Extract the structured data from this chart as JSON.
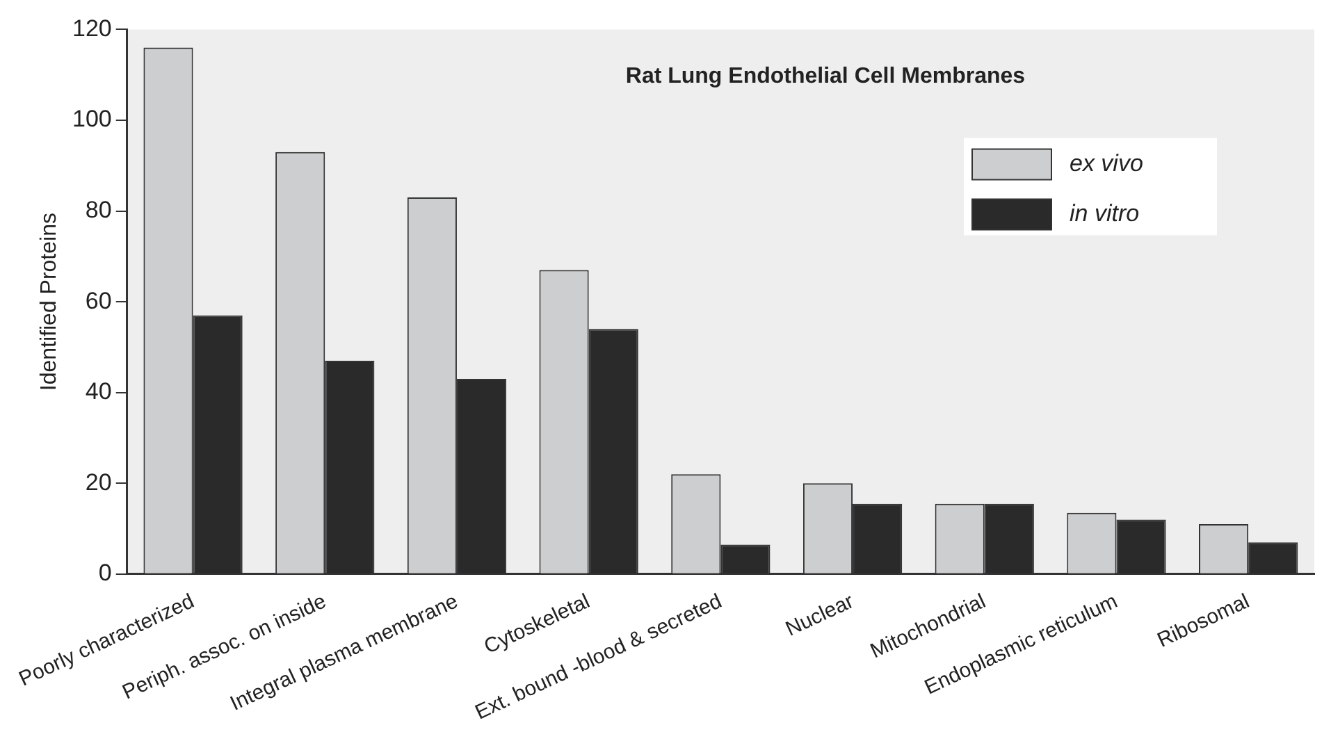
{
  "chart_data": {
    "type": "bar",
    "title": "Rat Lung Endothelial Cell Membranes",
    "ylabel": "Identified Proteins",
    "categories": [
      "Poorly characterized",
      "Periph. assoc. on inside",
      "Integral plasma membrane",
      "Cytoskeletal",
      "Ext. bound -blood & secreted",
      "Nuclear",
      "Mitochondrial",
      "Endoplasmic reticulum",
      "Ribosomal"
    ],
    "series": [
      {
        "name": "ex vivo",
        "color": "#cdcecf",
        "values": [
          116,
          93,
          83,
          67,
          22,
          20,
          15.5,
          13.5,
          11
        ]
      },
      {
        "name": "in vitro",
        "color": "#2b2a2b",
        "values": [
          57,
          47,
          43,
          54,
          6.5,
          15.5,
          15.5,
          12,
          7
        ]
      }
    ],
    "ylim": [
      0,
      120
    ],
    "yticks": [
      0,
      20,
      40,
      60,
      80,
      100,
      120
    ],
    "grid": false,
    "legend": "top right"
  }
}
